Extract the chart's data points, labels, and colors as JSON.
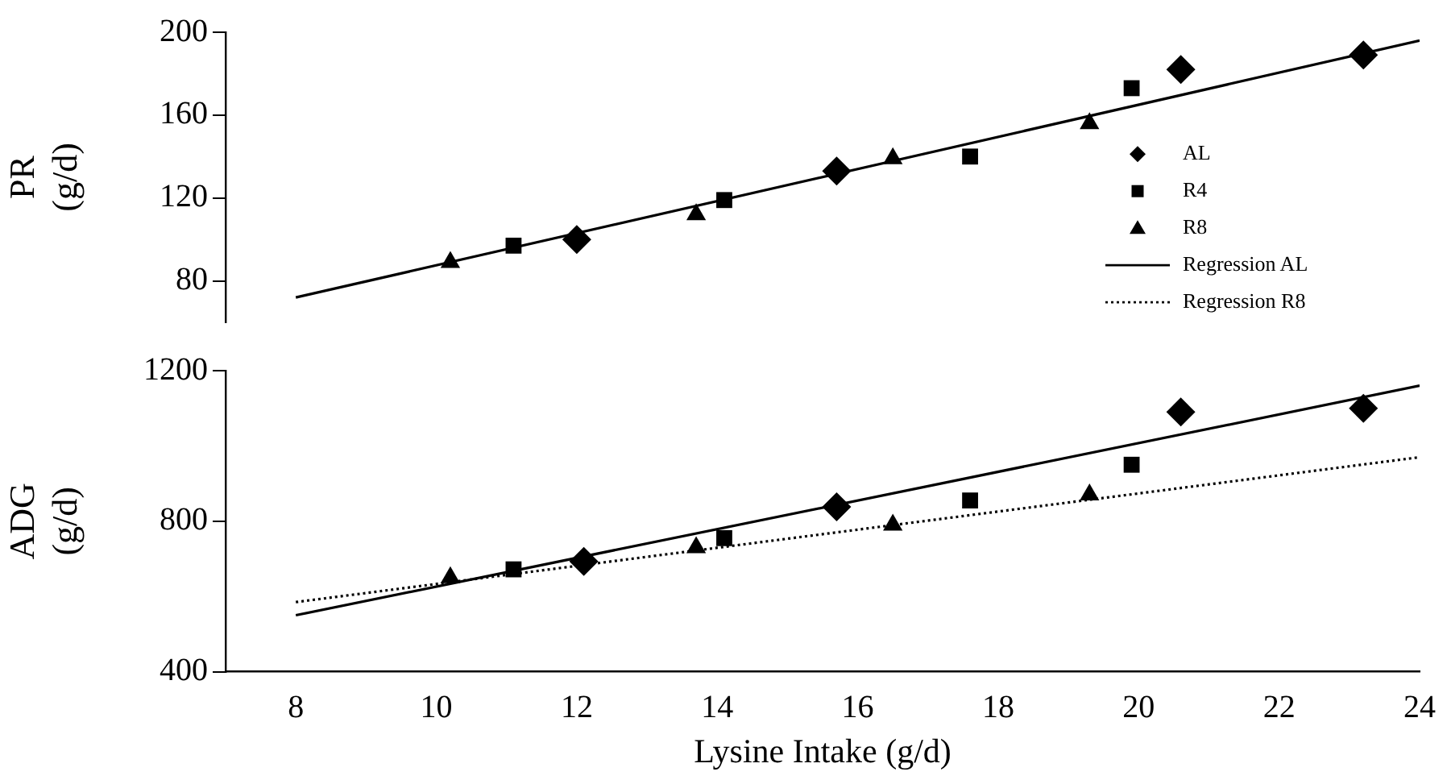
{
  "chart_data": [
    {
      "type": "scatter",
      "ylabel": "PR (g/d)",
      "xlim": [
        7,
        24
      ],
      "ylim": [
        60,
        200
      ],
      "yticks": [
        80,
        120,
        160,
        200
      ],
      "tick_labels": "y",
      "grid": false,
      "legend": "right",
      "series": [
        {
          "name": "AL",
          "color": "#000000",
          "marker": "diamond",
          "x": [
            12.0,
            15.7,
            20.6,
            23.2
          ],
          "values": [
            100,
            133,
            182,
            189
          ]
        },
        {
          "name": "R4",
          "color": "#000000",
          "marker": "square",
          "x": [
            11.1,
            14.1,
            17.6,
            19.9
          ],
          "values": [
            97,
            119,
            140,
            173
          ]
        },
        {
          "name": "R8",
          "color": "#000000",
          "marker": "triangle",
          "x": [
            10.2,
            13.7,
            16.5,
            19.3
          ],
          "values": [
            89,
            112,
            139,
            156
          ]
        },
        {
          "name": "Regression AL",
          "type": "line",
          "color": "#000000",
          "line_style": "solid",
          "x": [
            8,
            24
          ],
          "values": [
            72,
            196
          ]
        },
        {
          "name": "Regression R8",
          "type": "line",
          "color": "#000000",
          "line_style": "dotted"
        }
      ]
    },
    {
      "type": "scatter",
      "xlabel": "Lysine Intake (g/d)",
      "ylabel": "ADG (g/d)",
      "xlim": [
        7,
        24
      ],
      "xticks": [
        8,
        10,
        12,
        14,
        16,
        18,
        20,
        22,
        24
      ],
      "ylim": [
        400,
        1200
      ],
      "yticks": [
        400,
        800,
        1200
      ],
      "grid": false,
      "legend": false,
      "series": [
        {
          "color": "#000000",
          "marker": "diamond",
          "x": [
            12.1,
            15.7,
            20.6,
            23.2
          ],
          "values": [
            693,
            838,
            1090,
            1100
          ]
        },
        {
          "color": "#000000",
          "marker": "square",
          "x": [
            11.1,
            14.1,
            17.6,
            19.9
          ],
          "values": [
            672,
            755,
            855,
            950
          ]
        },
        {
          "color": "#000000",
          "marker": "triangle",
          "x": [
            10.2,
            13.7,
            16.5,
            19.3
          ],
          "values": [
            650,
            730,
            790,
            870
          ]
        },
        {
          "type": "line",
          "color": "#000000",
          "line_style": "solid",
          "x": [
            8,
            24
          ],
          "values": [
            550,
            1160
          ]
        },
        {
          "type": "line",
          "color": "#000000",
          "line_style": "dotted",
          "x": [
            8,
            24
          ],
          "values": [
            585,
            970
          ]
        }
      ]
    }
  ]
}
